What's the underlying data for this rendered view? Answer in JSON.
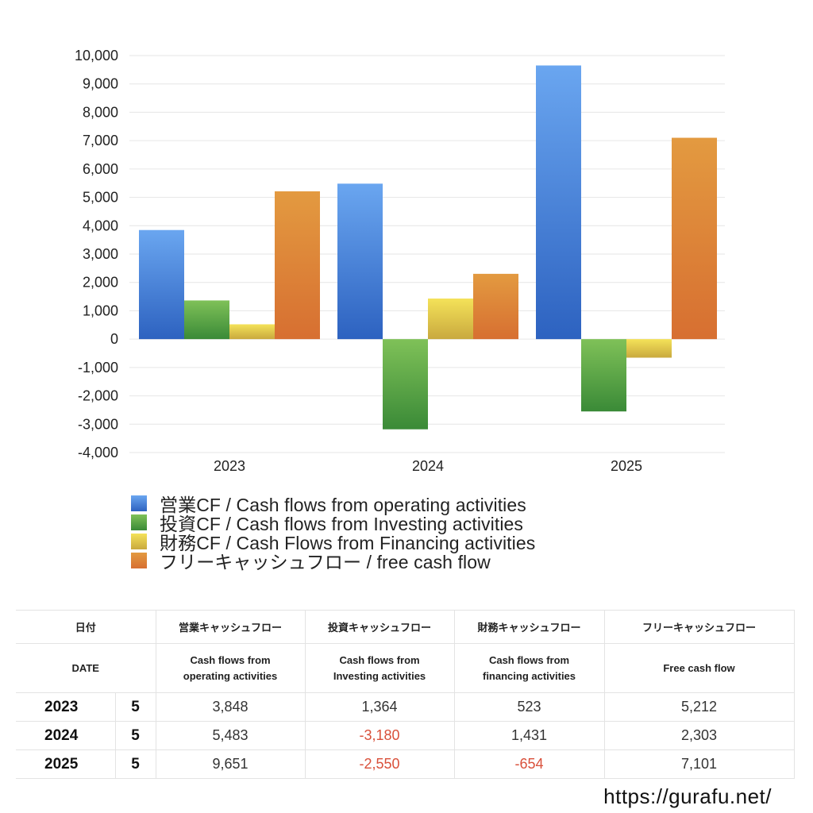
{
  "chart_data": {
    "type": "bar",
    "title": "",
    "xlabel": "",
    "ylabel": "",
    "categories": [
      "2023",
      "2024",
      "2025"
    ],
    "series": [
      {
        "name": "営業CF / Cash flows from operating activities",
        "values": [
          3848,
          5483,
          9651
        ],
        "color_top": "#6aa6f0",
        "color_bottom": "#2d62c0"
      },
      {
        "name": "投資CF / Cash flows from Investing activities",
        "values": [
          1364,
          -3180,
          -2550
        ],
        "color_top": "#7fc158",
        "color_bottom": "#3a8a37"
      },
      {
        "name": "財務CF / Cash Flows from Financing activities",
        "values": [
          523,
          1431,
          -654
        ],
        "color_top": "#f4e259",
        "color_bottom": "#c9a93e"
      },
      {
        "name": "フリーキャッシュフロー / free cash flow",
        "values": [
          5212,
          2303,
          7101
        ],
        "color_top": "#e39a40",
        "color_bottom": "#d76f31"
      }
    ],
    "ylim": [
      -4000,
      10000
    ],
    "yticks": [
      10000,
      9000,
      8000,
      7000,
      6000,
      5000,
      4000,
      3000,
      2000,
      1000,
      0,
      -1000,
      -2000,
      -3000,
      -4000
    ],
    "ytick_labels": [
      "10,000",
      "9,000",
      "8,000",
      "7,000",
      "6,000",
      "5,000",
      "4,000",
      "3,000",
      "2,000",
      "1,000",
      "0",
      "-1,000",
      "-2,000",
      "-3,000",
      "-4,000"
    ],
    "grid": true,
    "legend_position": "bottom"
  },
  "legend": [
    {
      "label": "営業CF / Cash flows from operating activities",
      "color_top": "#6aa6f0",
      "color_bottom": "#2d62c0"
    },
    {
      "label": "投資CF / Cash flows from Investing activities",
      "color_top": "#7fc158",
      "color_bottom": "#3a8a37"
    },
    {
      "label": "財務CF / Cash Flows from Financing activities",
      "color_top": "#f4e259",
      "color_bottom": "#c9a93e"
    },
    {
      "label": "フリーキャッシュフロー / free cash flow",
      "color_top": "#e39a40",
      "color_bottom": "#d76f31"
    }
  ],
  "table": {
    "header_jp": [
      "日付",
      "営業キャッシュフロー",
      "投資キャッシュフロー",
      "財務キャッシュフロー",
      "フリーキャッシュフロー"
    ],
    "header_en": [
      "DATE",
      "Cash flows from operating activities",
      "Cash flows from Investing activities",
      "Cash flows from financing activities",
      "Free cash flow"
    ],
    "header_en_lines": [
      [
        "DATE"
      ],
      [
        "Cash flows from",
        "operating activities"
      ],
      [
        "Cash flows from",
        "Investing activities"
      ],
      [
        "Cash flows from",
        "financing activities"
      ],
      [
        "Free cash flow"
      ]
    ],
    "rows": [
      {
        "year": "2023",
        "month": "5",
        "operating": "3,848",
        "investing": "1,364",
        "financing": "523",
        "free": "5,212"
      },
      {
        "year": "2024",
        "month": "5",
        "operating": "5,483",
        "investing": "-3,180",
        "financing": "1,431",
        "free": "2,303"
      },
      {
        "year": "2025",
        "month": "5",
        "operating": "9,651",
        "investing": "-2,550",
        "financing": "-654",
        "free": "7,101"
      }
    ],
    "negative_color": "#d9503a"
  },
  "footer": {
    "url": "https://gurafu.net/"
  }
}
